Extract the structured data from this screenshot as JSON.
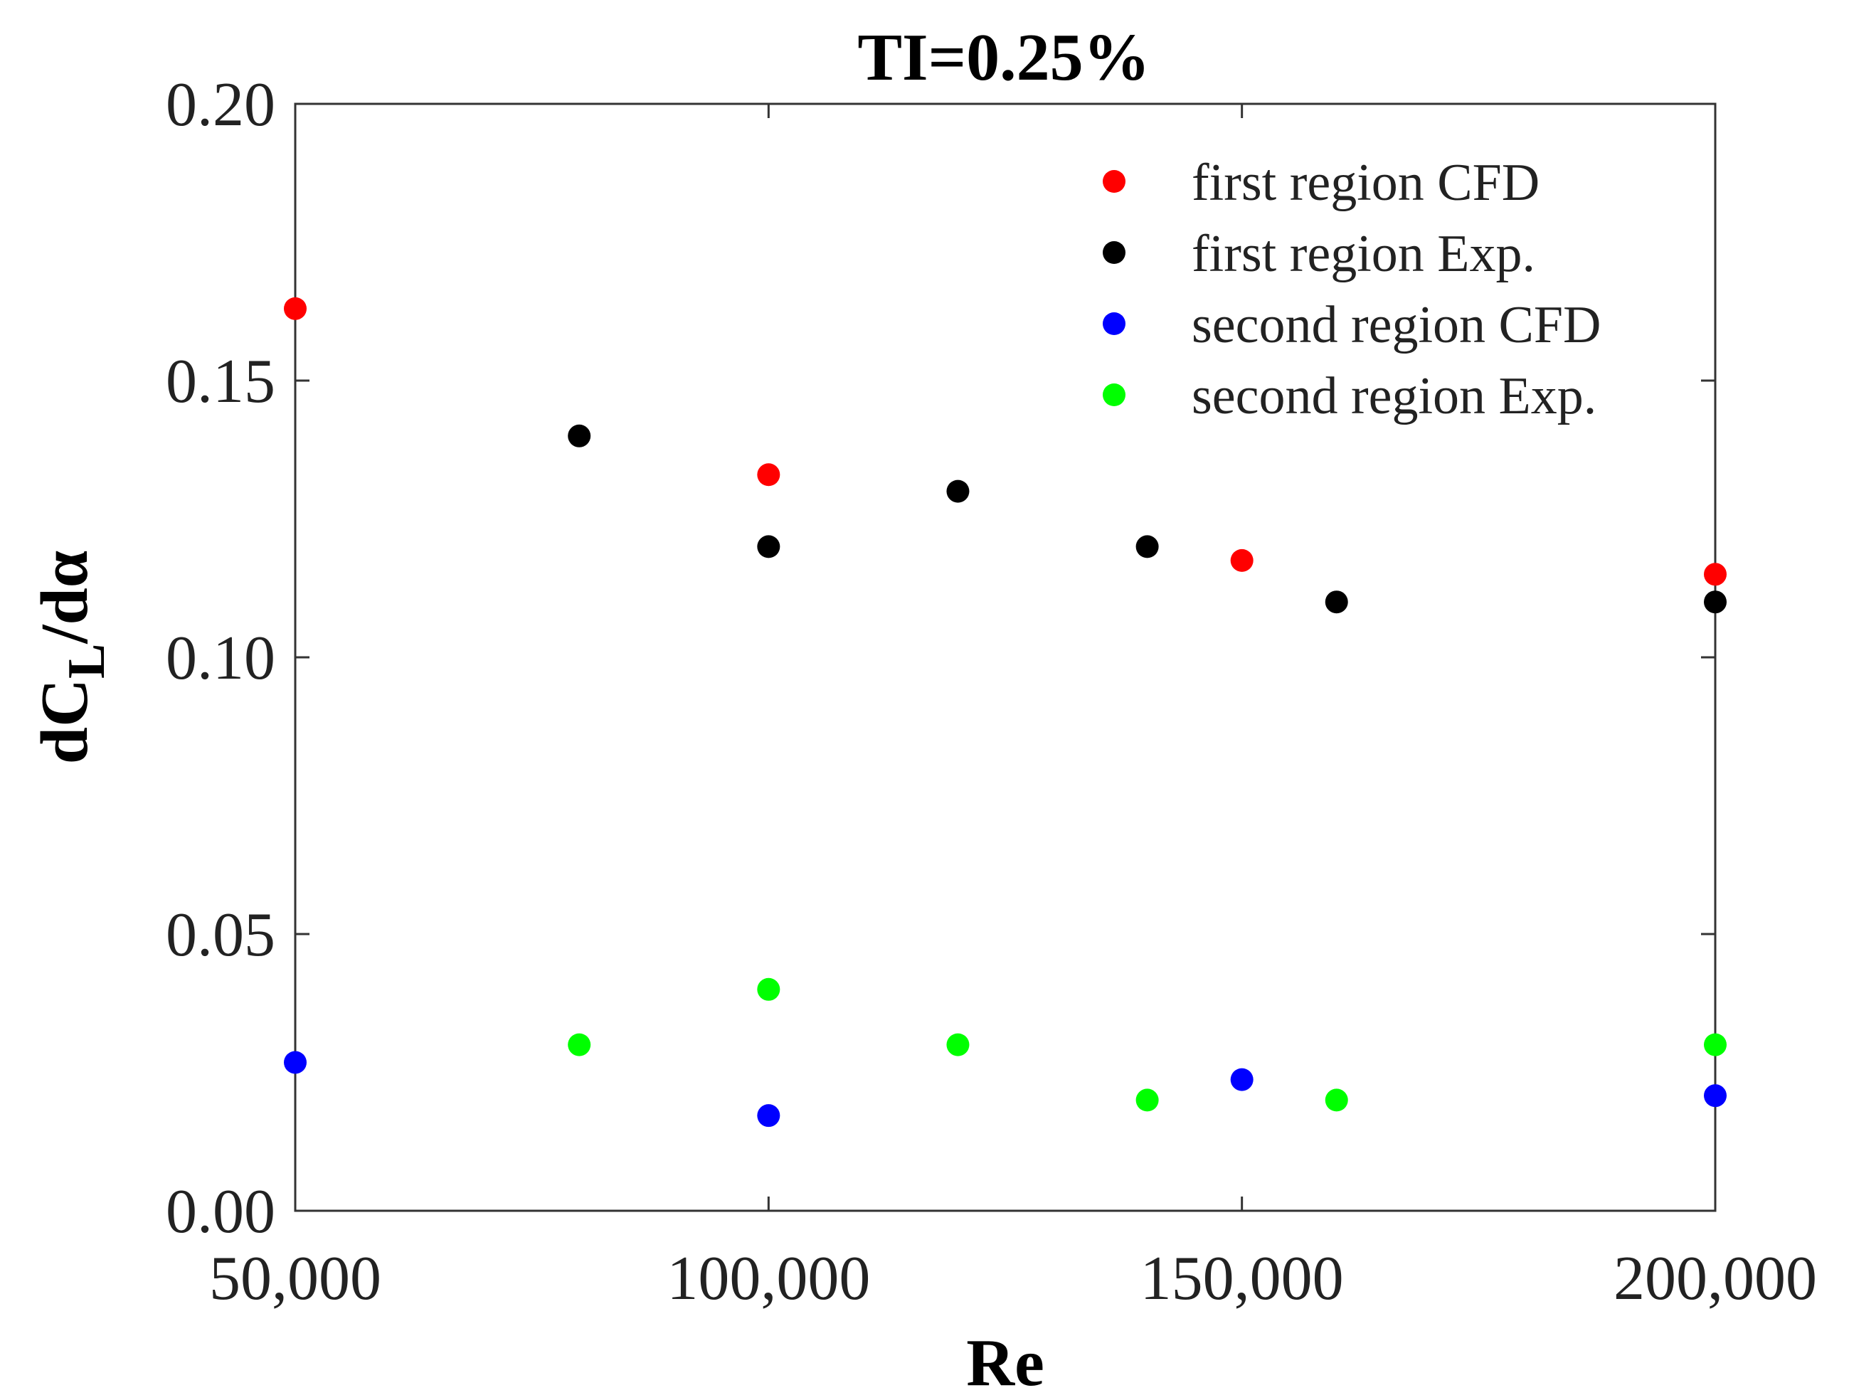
{
  "chart_data": {
    "type": "scatter",
    "title": "TI=0.25%",
    "xlabel": "Re",
    "ylabel": {
      "prefix": "dC",
      "subscript": "L",
      "suffix": "/dα"
    },
    "xlim": [
      50000,
      200000
    ],
    "ylim": [
      0,
      0.2
    ],
    "xticks": [
      50000,
      100000,
      150000,
      200000
    ],
    "xtick_labels": [
      "50,000",
      "100,000",
      "150,000",
      "200,000"
    ],
    "yticks": [
      0,
      0.05,
      0.1,
      0.15,
      0.2
    ],
    "ytick_labels": [
      "0.00",
      "0.05",
      "0.10",
      "0.15",
      "0.20"
    ],
    "grid": false,
    "legend_position": "top-right",
    "series": [
      {
        "name": "first region CFD",
        "color": "#ff0000",
        "points": [
          [
            50000,
            0.163
          ],
          [
            100000,
            0.133
          ],
          [
            150000,
            0.1175
          ],
          [
            200000,
            0.115
          ]
        ]
      },
      {
        "name": "first region Exp.",
        "color": "#000000",
        "points": [
          [
            80000,
            0.14
          ],
          [
            100000,
            0.12
          ],
          [
            120000,
            0.13
          ],
          [
            140000,
            0.12
          ],
          [
            160000,
            0.11
          ],
          [
            200000,
            0.11
          ]
        ]
      },
      {
        "name": "second region CFD",
        "color": "#0000ff",
        "points": [
          [
            50000,
            0.0268
          ],
          [
            100000,
            0.0172
          ],
          [
            150000,
            0.0237
          ],
          [
            200000,
            0.0208
          ]
        ]
      },
      {
        "name": "second region Exp.",
        "color": "#00ff00",
        "points": [
          [
            80000,
            0.03
          ],
          [
            100000,
            0.04
          ],
          [
            120000,
            0.03
          ],
          [
            140000,
            0.02
          ],
          [
            160000,
            0.02
          ],
          [
            200000,
            0.03
          ]
        ]
      }
    ]
  }
}
